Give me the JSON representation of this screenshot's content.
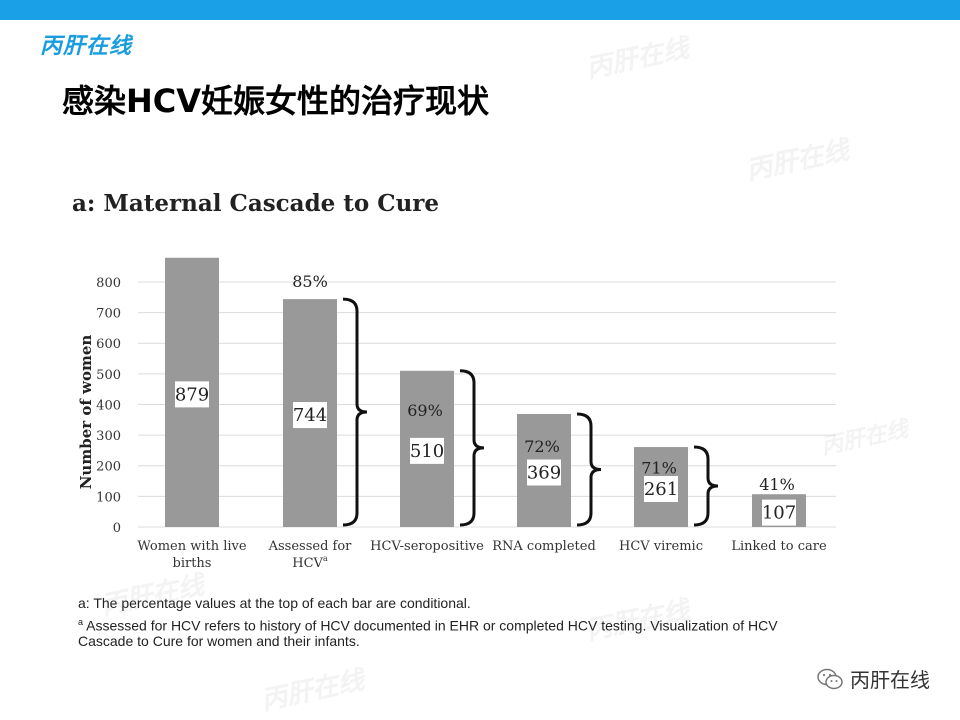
{
  "brand": {
    "logo_text": "丙肝在线",
    "footer_text": "丙肝在线"
  },
  "slide": {
    "title": "感染HCV妊娠女性的治疗现状"
  },
  "colors": {
    "top_bar": "#1aa0e6",
    "bar_fill": "#999999",
    "bracket": "#111111"
  },
  "chart_data": {
    "type": "bar",
    "title": "a: Maternal Cascade to Cure",
    "ylabel": "Number of women",
    "xlabel": "",
    "ylim": [
      0,
      900
    ],
    "yticks": [
      0,
      100,
      200,
      300,
      400,
      500,
      600,
      700,
      800
    ],
    "grid": true,
    "categories": [
      [
        "Women with live",
        "births"
      ],
      [
        "Assessed for",
        "HCVa"
      ],
      [
        "HCV-seropositive"
      ],
      [
        "RNA completed"
      ],
      [
        "HCV viremic"
      ],
      [
        "Linked to care"
      ]
    ],
    "values": [
      879,
      744,
      510,
      369,
      261,
      107
    ],
    "conditional_percentages": [
      "",
      "85%",
      "69%",
      "72%",
      "71%",
      "41%"
    ]
  },
  "footnotes": {
    "line1": "a: The percentage values at the top of each bar are conditional.",
    "line2_sup": "a",
    "line2": " Assessed for HCV refers to history  of HCV documented in EHR or completed HCV testing. Visualization of HCV",
    "line3": "Cascade to Cure for women and their infants."
  }
}
